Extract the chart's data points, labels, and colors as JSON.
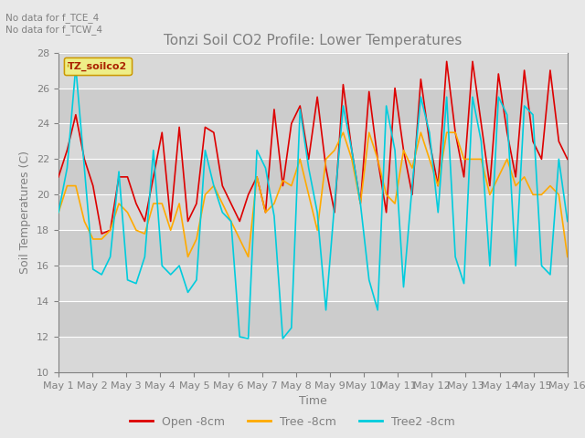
{
  "title": "Tonzi Soil CO2 Profile: Lower Temperatures",
  "xlabel": "Time",
  "ylabel": "Soil Temperatures (C)",
  "text_top_left": "No data for f_TCE_4\nNo data for f_TCW_4",
  "legend_label": "TZ_soilco2",
  "ylim": [
    10,
    28
  ],
  "yticks": [
    10,
    12,
    14,
    16,
    18,
    20,
    22,
    24,
    26,
    28
  ],
  "series_labels": [
    "Open -8cm",
    "Tree -8cm",
    "Tree2 -8cm"
  ],
  "series_colors": [
    "#dd0000",
    "#ffaa00",
    "#00ccdd"
  ],
  "background_color": "#e8e8e8",
  "plot_bg_color": "#d8d8d8",
  "band_colors": [
    "#d8d8d8",
    "#cccccc"
  ],
  "n_days": 15,
  "open_8cm": [
    21.0,
    22.5,
    24.5,
    22.0,
    20.5,
    17.8,
    18.0,
    21.0,
    21.0,
    19.5,
    18.5,
    21.0,
    23.5,
    18.5,
    23.8,
    18.5,
    19.5,
    23.8,
    23.5,
    20.5,
    19.5,
    18.5,
    20.0,
    21.0,
    19.0,
    24.8,
    20.5,
    24.0,
    25.0,
    22.0,
    25.5,
    21.5,
    19.0,
    26.2,
    22.5,
    19.5,
    25.8,
    22.0,
    19.0,
    26.0,
    22.5,
    20.0,
    26.5,
    23.0,
    20.5,
    27.5,
    23.5,
    21.0,
    27.5,
    24.0,
    20.5,
    26.8,
    23.5,
    21.0,
    27.0,
    23.0,
    22.0,
    27.0,
    23.0,
    22.0
  ],
  "tree_8cm": [
    19.0,
    20.5,
    20.5,
    18.5,
    17.5,
    17.5,
    18.0,
    19.5,
    19.0,
    18.0,
    17.8,
    19.5,
    19.5,
    18.0,
    19.5,
    16.5,
    17.5,
    20.0,
    20.5,
    19.5,
    18.5,
    17.5,
    16.5,
    21.0,
    19.0,
    19.5,
    20.8,
    20.5,
    22.0,
    20.0,
    18.0,
    22.0,
    22.5,
    23.5,
    22.0,
    19.5,
    23.5,
    22.0,
    20.0,
    19.5,
    22.5,
    21.5,
    23.5,
    22.0,
    20.5,
    23.5,
    23.5,
    22.0,
    22.0,
    22.0,
    20.0,
    21.0,
    22.0,
    20.5,
    21.0,
    20.0,
    20.0,
    20.5,
    20.0,
    16.5
  ],
  "tree2_8cm": [
    19.0,
    21.5,
    27.2,
    21.5,
    15.8,
    15.5,
    16.5,
    21.3,
    15.2,
    15.0,
    16.5,
    22.5,
    16.0,
    15.5,
    16.0,
    14.5,
    15.2,
    22.5,
    20.5,
    19.0,
    18.5,
    12.0,
    11.9,
    22.5,
    21.5,
    18.8,
    11.9,
    12.5,
    24.8,
    21.5,
    19.0,
    13.5,
    19.5,
    25.0,
    22.5,
    19.5,
    15.2,
    13.5,
    25.0,
    22.5,
    14.8,
    20.5,
    25.5,
    23.5,
    19.0,
    25.5,
    16.5,
    15.0,
    25.5,
    23.0,
    16.0,
    25.5,
    24.5,
    16.0,
    25.0,
    24.5,
    16.0,
    15.5,
    22.0,
    18.5
  ]
}
